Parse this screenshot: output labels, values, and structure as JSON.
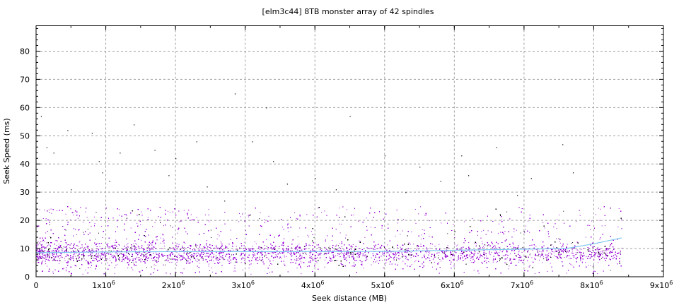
{
  "chart_data": {
    "type": "scatter",
    "title": "[elm3c44] 8TB monster array of 42 spindles",
    "xlabel": "Seek distance (MB)",
    "ylabel": "Seek Speed (ms)",
    "xlim": [
      0,
      9000000
    ],
    "ylim": [
      0,
      89
    ],
    "grid": true,
    "legend": "none",
    "x_ticks": [
      {
        "value": 0,
        "label": "0"
      },
      {
        "value": 1000000,
        "label": "1x10",
        "exp": "6"
      },
      {
        "value": 2000000,
        "label": "2x10",
        "exp": "6"
      },
      {
        "value": 3000000,
        "label": "3x10",
        "exp": "6"
      },
      {
        "value": 4000000,
        "label": "4x10",
        "exp": "6"
      },
      {
        "value": 5000000,
        "label": "5x10",
        "exp": "6"
      },
      {
        "value": 6000000,
        "label": "6x10",
        "exp": "6"
      },
      {
        "value": 7000000,
        "label": "7x10",
        "exp": "6"
      },
      {
        "value": 8000000,
        "label": "8x10",
        "exp": "6"
      },
      {
        "value": 9000000,
        "label": "9x10",
        "exp": "6"
      }
    ],
    "y_ticks": [
      0,
      10,
      20,
      30,
      40,
      50,
      60,
      70,
      80
    ],
    "colors": {
      "points": "#9400d3",
      "points_secondary": "#000000",
      "trend": "#7ec8f0",
      "grid": "#a0a0a0"
    },
    "bulk_band": {
      "x_range": [
        0,
        8400000
      ],
      "y_range": [
        1,
        25
      ],
      "typical_y": [
        3,
        12
      ]
    },
    "outliers": [
      [
        70000,
        57
      ],
      [
        450000,
        52
      ],
      [
        800000,
        51
      ],
      [
        1400000,
        54
      ],
      [
        2850000,
        65
      ],
      [
        4500000,
        57
      ],
      [
        250000,
        44
      ],
      [
        900000,
        41
      ],
      [
        1700000,
        45
      ],
      [
        2000000,
        42
      ],
      [
        3100000,
        48
      ],
      [
        3400000,
        41
      ],
      [
        5000000,
        43
      ],
      [
        5500000,
        39
      ],
      [
        6100000,
        43
      ],
      [
        6600000,
        46
      ],
      [
        7550000,
        47
      ],
      [
        7700000,
        37
      ],
      [
        2300000,
        48
      ],
      [
        1200000,
        44
      ],
      [
        500000,
        31
      ],
      [
        4000000,
        35
      ],
      [
        3600000,
        33
      ],
      [
        6200000,
        36
      ],
      [
        1050000,
        34
      ],
      [
        2700000,
        27
      ],
      [
        4300000,
        31
      ],
      [
        5300000,
        30
      ],
      [
        7100000,
        35
      ],
      [
        950000,
        37
      ],
      [
        150000,
        46
      ],
      [
        1900000,
        36
      ],
      [
        3300000,
        60
      ],
      [
        2450000,
        32
      ],
      [
        5800000,
        34
      ],
      [
        6900000,
        29
      ]
    ],
    "trend": [
      [
        0,
        8.5
      ],
      [
        1000000,
        8.8
      ],
      [
        2000000,
        8.9
      ],
      [
        3000000,
        8.9
      ],
      [
        4000000,
        8.9
      ],
      [
        5000000,
        9.0
      ],
      [
        6000000,
        9.4
      ],
      [
        7000000,
        9.8
      ],
      [
        7600000,
        10.0
      ],
      [
        8000000,
        11.7
      ],
      [
        8400000,
        13.8
      ]
    ]
  }
}
